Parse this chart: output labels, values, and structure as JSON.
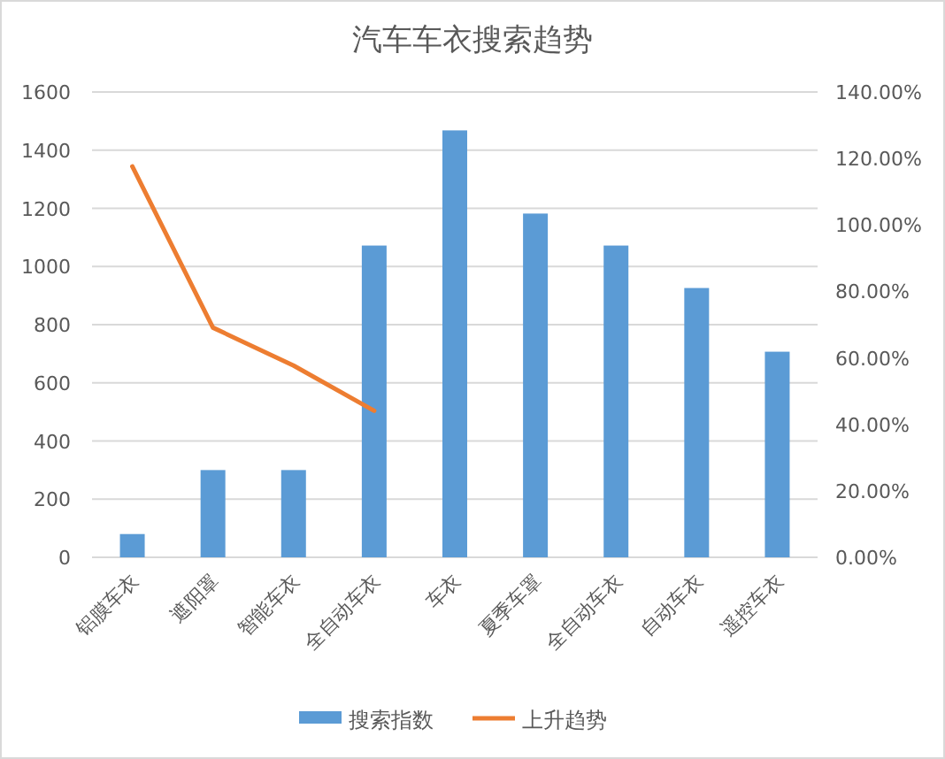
{
  "chart_data": {
    "type": "bar",
    "title": "汽车车衣搜索趋势",
    "categories": [
      "铝膜车衣",
      "遮阳罩",
      "智能车衣",
      "全自动车衣",
      "车衣",
      "夏季车罩",
      "全自动车衣",
      "自动车衣",
      "遥控车衣"
    ],
    "series": [
      {
        "name": "搜索指数",
        "color": "#5b9bd5",
        "values": [
          80,
          300,
          300,
          1072,
          1468,
          1182,
          1072,
          926,
          707
        ]
      },
      {
        "name": "上升趋势",
        "type": "line",
        "axis": "y2",
        "color": "#ed7d31",
        "values": [
          117.6,
          69.1,
          57.7,
          44.1,
          null,
          null,
          null,
          null,
          null
        ]
      }
    ],
    "ylim": [
      0,
      1600
    ],
    "yticks": [
      0,
      200,
      400,
      600,
      800,
      1000,
      1200,
      1400,
      1600
    ],
    "y2lim": [
      0,
      140
    ],
    "y2ticks": [
      {
        "value": 0,
        "label": "0.00%"
      },
      {
        "value": 20,
        "label": "20.00%"
      },
      {
        "value": 40,
        "label": "40.00%"
      },
      {
        "value": 60,
        "label": "60.00%"
      },
      {
        "value": 80,
        "label": "80.00%"
      },
      {
        "value": 100,
        "label": "100.00%"
      },
      {
        "value": 120,
        "label": "120.00%"
      },
      {
        "value": 140,
        "label": "140.00%"
      }
    ],
    "grid": "y",
    "legend": "bottom"
  }
}
